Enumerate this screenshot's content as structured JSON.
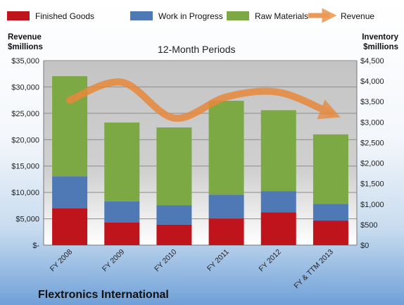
{
  "chart_data": {
    "type": "bar",
    "subtitle": "12-Month Periods",
    "footer_title": "Flextronics International",
    "left_axis_title": [
      "Revenue",
      "$millions"
    ],
    "right_axis_title": [
      "Inventory",
      "$millions"
    ],
    "categories": [
      "FY 2008",
      "FY 2009",
      "FY 2010",
      "FY 2011",
      "FY 2012",
      "FY & TTM 2013"
    ],
    "left_ticks": [
      "$-",
      "$5,000",
      "$10,000",
      "$15,000",
      "$20,000",
      "$25,000",
      "$30,000",
      "$35,000"
    ],
    "right_ticks": [
      "$0",
      "$500",
      "$1,000",
      "$1,500",
      "$2,000",
      "$2,500",
      "$3,000",
      "$3,500",
      "$4,000",
      "$4,500"
    ],
    "left_ylim": [
      0,
      35000
    ],
    "right_ylim": [
      0,
      4500
    ],
    "stacked": true,
    "series": [
      {
        "name": "Finished Goods",
        "color": "#c0141c",
        "axis": "right",
        "values": [
          900,
          550,
          500,
          650,
          800,
          600
        ]
      },
      {
        "name": "Work in Progress",
        "color": "#4f79b5",
        "axis": "right",
        "values": [
          780,
          520,
          470,
          580,
          520,
          410
        ]
      },
      {
        "name": "Raw Materials",
        "color": "#7da944",
        "axis": "right",
        "values": [
          2440,
          1920,
          1900,
          2290,
          1970,
          1690
        ]
      }
    ],
    "line_series": {
      "name": "Revenue",
      "color": "#e8883b",
      "axis": "left",
      "values": [
        27500,
        30900,
        24100,
        28100,
        29000,
        25000
      ]
    },
    "grid": true,
    "legend": "top"
  }
}
